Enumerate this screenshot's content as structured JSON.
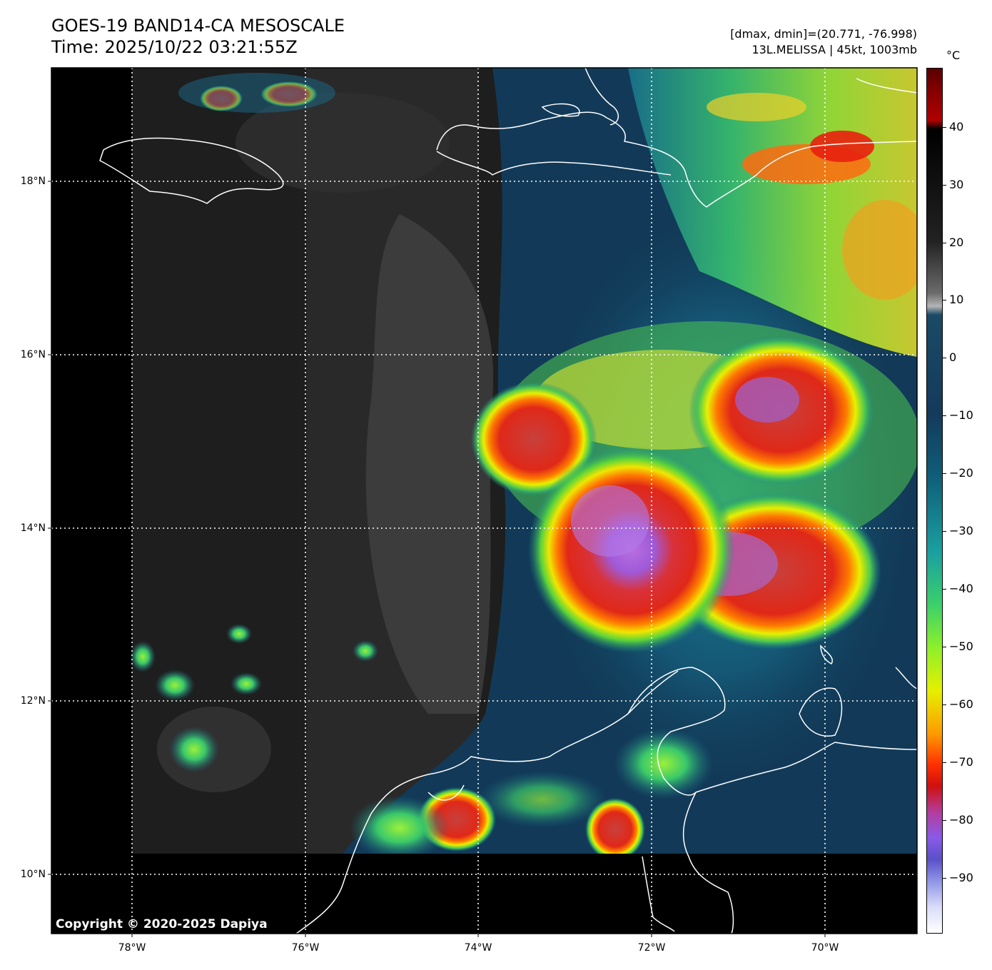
{
  "header": {
    "title_line1": "GOES-19 BAND14-CA MESOSCALE",
    "title_line2": "Time: 2025/10/22 03:21:55Z",
    "info_line1": "[dmax, dmin]=(20.771, -76.998)",
    "info_line2": "13L.MELISSA | 45kt, 1003mb"
  },
  "map": {
    "copyright": "Copyright © 2020-2025 Dapiya",
    "lat_labels": [
      "18°N",
      "16°N",
      "14°N",
      "12°N",
      "10°N"
    ],
    "lon_labels": [
      "78°W",
      "76°W",
      "74°W",
      "72°W",
      "70°W"
    ]
  },
  "colorbar": {
    "unit": "°C",
    "ticks": [
      "40",
      "30",
      "20",
      "10",
      "0",
      "−10",
      "−20",
      "−30",
      "−40",
      "−50",
      "−60",
      "−70",
      "−80",
      "−90"
    ]
  }
}
